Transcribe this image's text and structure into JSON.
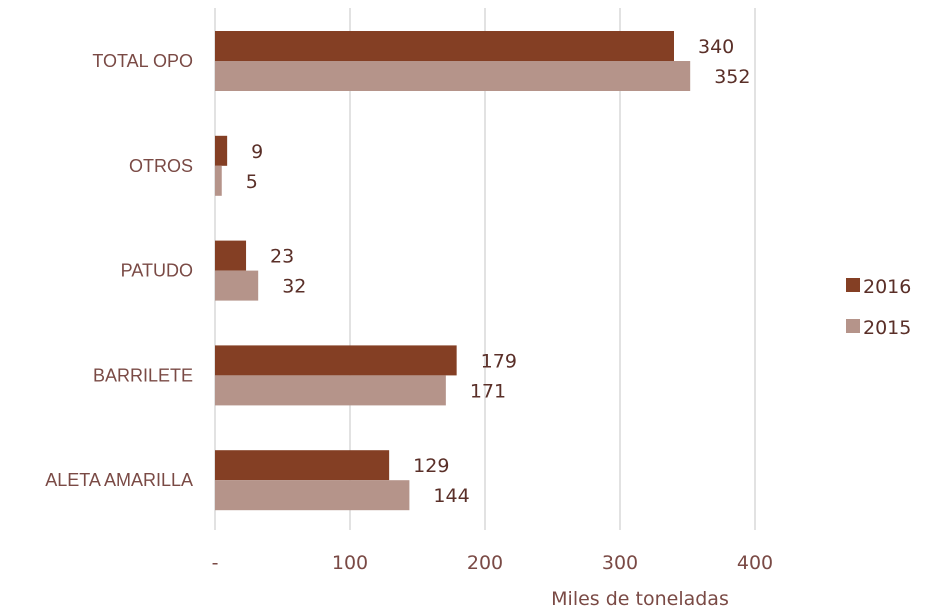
{
  "chart_data": {
    "type": "bar",
    "orientation": "horizontal",
    "categories": [
      "TOTAL OPO",
      "OTROS",
      "PATUDO",
      "BARRILETE",
      "ALETA AMARILLA"
    ],
    "series": [
      {
        "name": "2016",
        "values": [
          340,
          9,
          23,
          179,
          129
        ],
        "color": "#843f24"
      },
      {
        "name": "2015",
        "values": [
          352,
          5,
          32,
          171,
          144
        ],
        "color": "#b5948a"
      }
    ],
    "data_labels": [
      [
        "340",
        "9",
        "23",
        "179",
        "129"
      ],
      [
        "352",
        "5",
        "32",
        "171",
        "144"
      ]
    ],
    "xlabel": "Miles de toneladas",
    "ylabel": "",
    "xlim": [
      0,
      400
    ],
    "x_ticks": [
      0,
      100,
      200,
      300,
      400
    ],
    "x_tick_labels": [
      "-",
      "100",
      "200",
      "300",
      "400"
    ],
    "grid": "vertical",
    "grid_color": "#d9d9d9",
    "legend_position": "right"
  }
}
